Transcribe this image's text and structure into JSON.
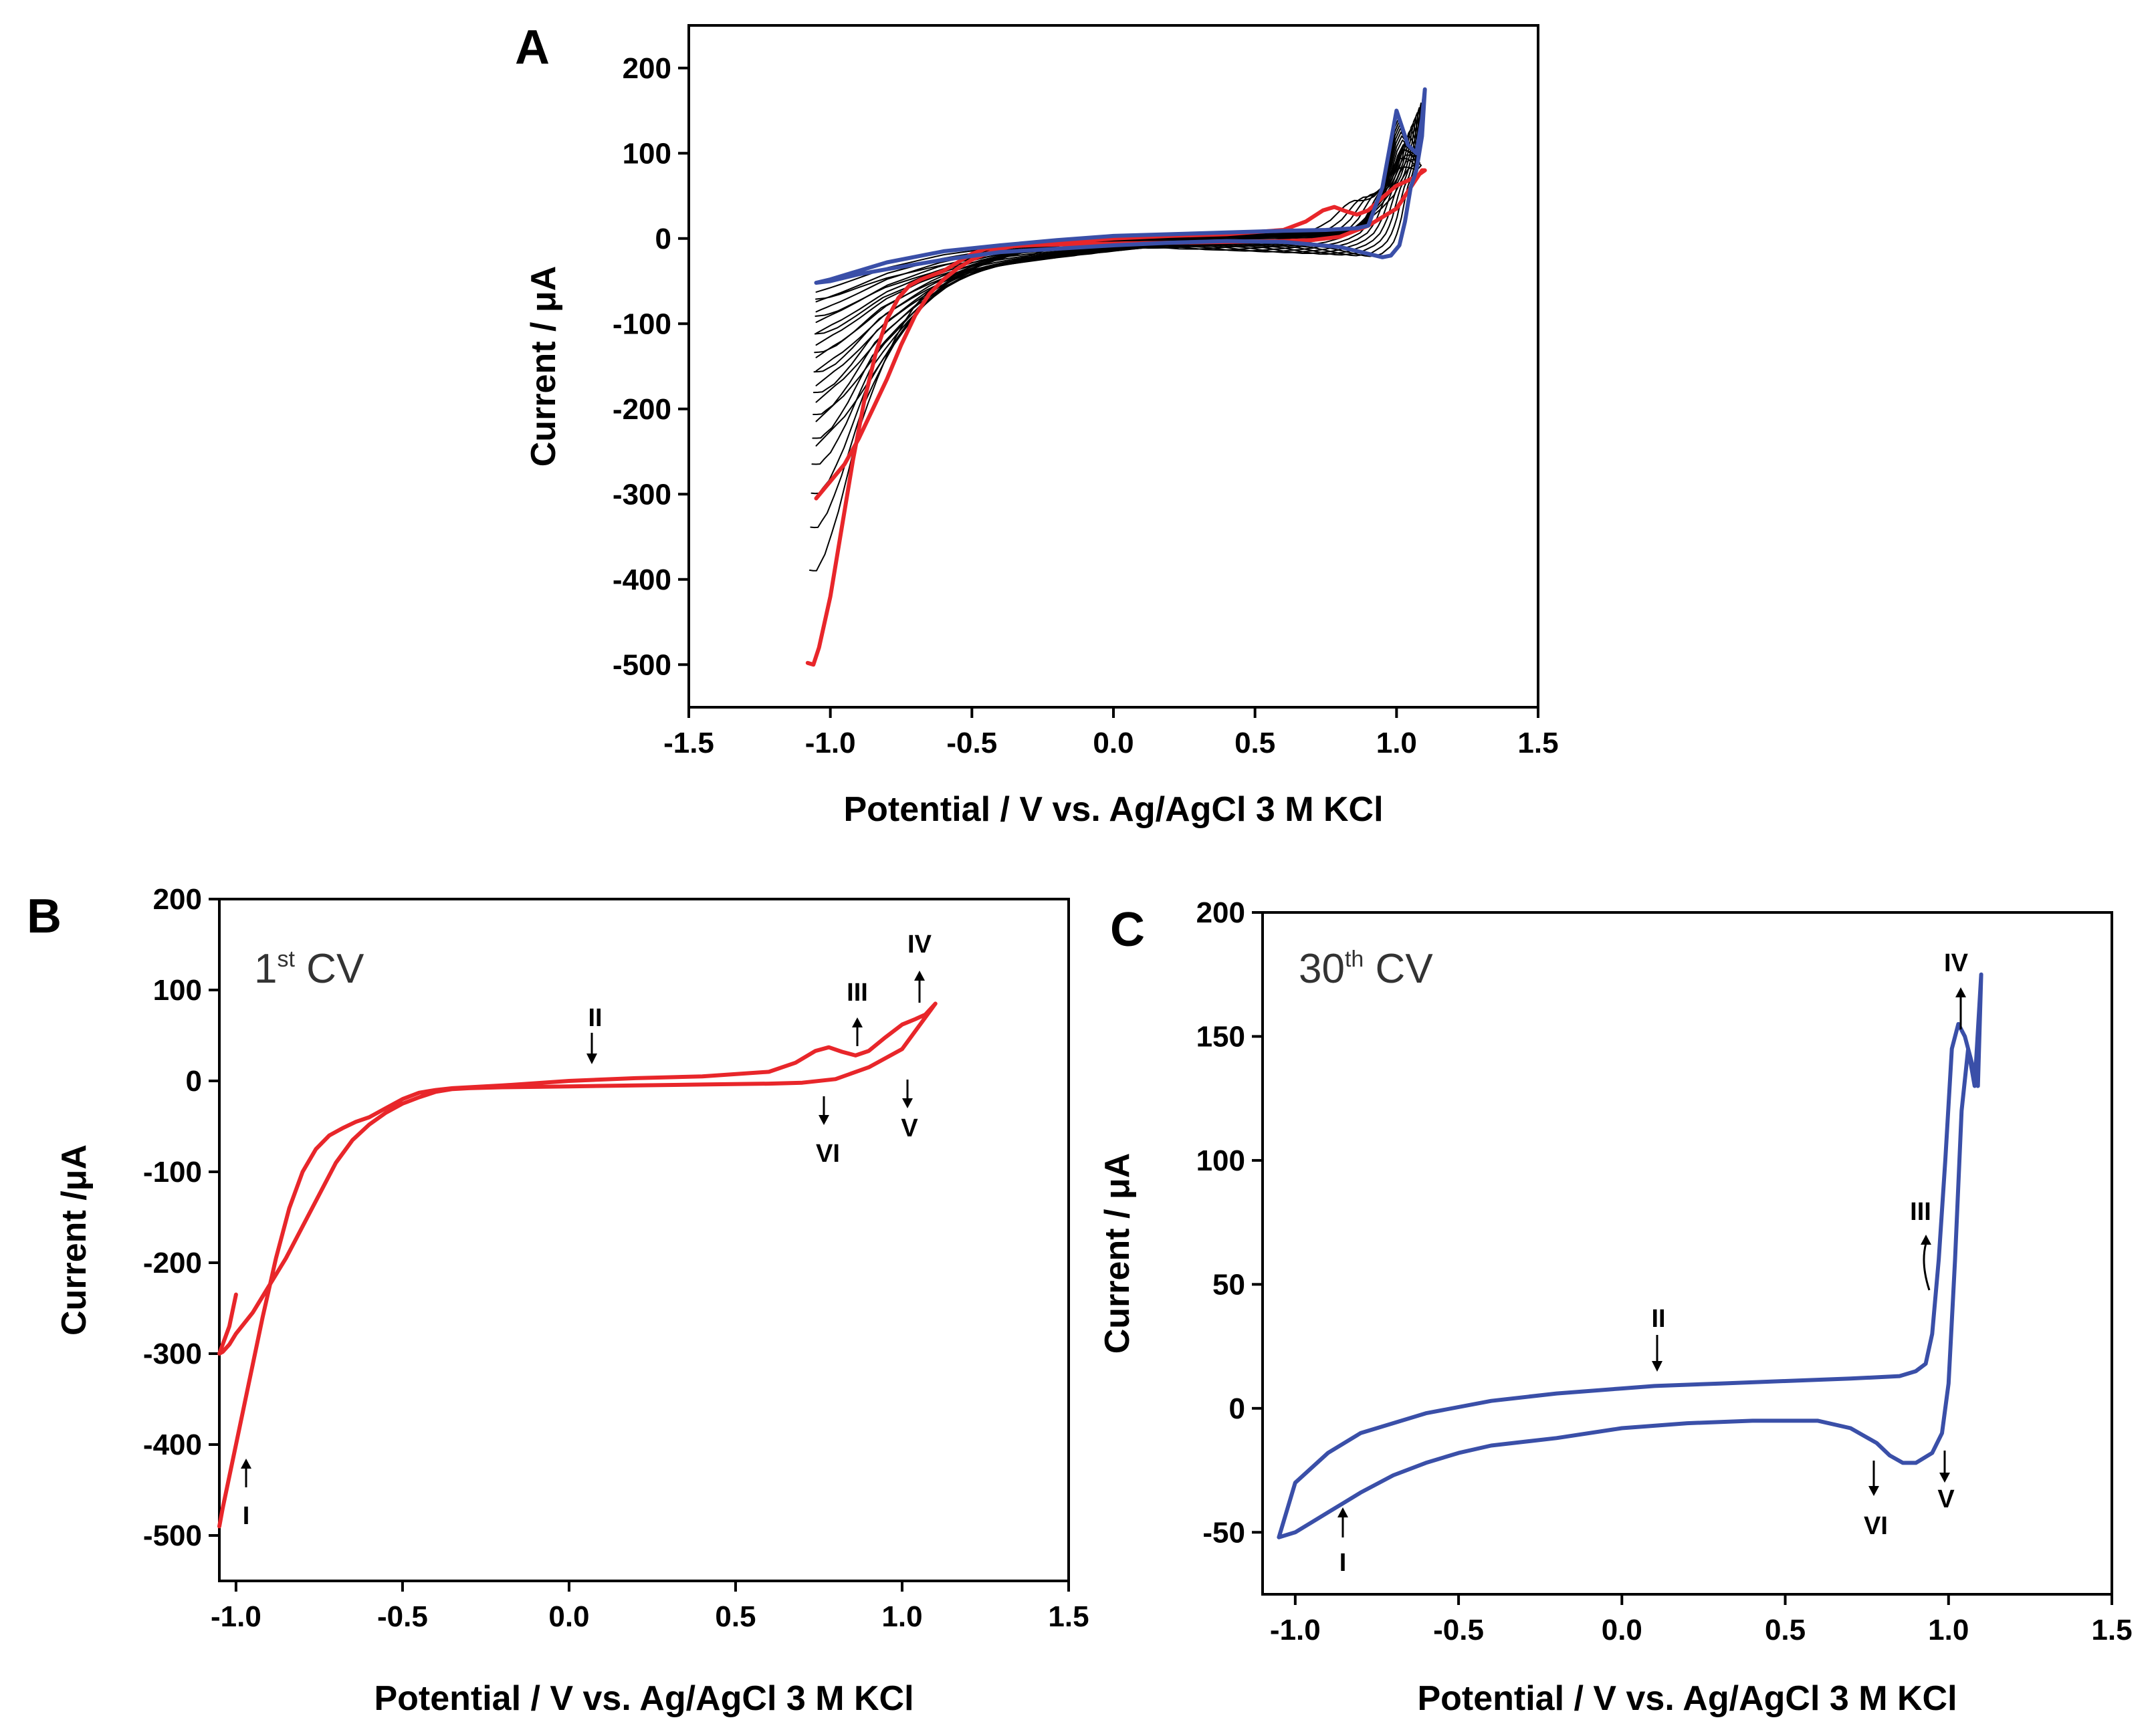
{
  "chart_data": [
    {
      "panel": "A",
      "type": "line",
      "xlabel": "Potential / V vs. Ag/AgCl 3 M KCl",
      "ylabel": "Current / μA",
      "xlim": [
        -1.5,
        1.5
      ],
      "ylim": [
        -550,
        250
      ],
      "xticks": [
        "-1.5",
        "-1.0",
        "-0.5",
        "0.0",
        "0.5",
        "1.0",
        "1.5"
      ],
      "yticks": [
        "-500",
        "-400",
        "-300",
        "-200",
        "-100",
        "0",
        "100",
        "200"
      ],
      "grid": false,
      "colors": {
        "first_cycle": "#e8262a",
        "intermediate_cycles": "#000000",
        "last_cycle": "#3a4fa8"
      },
      "series": [
        {
          "color": "#e8262a",
          "x": [
            -1.08,
            -1.06,
            -1.04,
            -1.0,
            -0.96,
            -0.92,
            -0.88,
            -0.84,
            -0.8,
            -0.76,
            -0.72,
            -0.68,
            -0.64,
            -0.6,
            -0.55,
            -0.5,
            -0.45,
            -0.4,
            -0.35,
            -0.3,
            -0.2,
            0.0,
            0.2,
            0.4,
            0.6,
            0.68,
            0.74,
            0.78,
            0.82,
            0.86,
            0.9,
            0.95,
            1.0,
            1.04,
            1.07,
            1.1,
            1.09,
            1.05,
            1.0,
            0.9,
            0.8,
            0.7,
            0.6,
            0.4,
            0.2,
            0.0,
            -0.2,
            -0.3,
            -0.35,
            -0.4,
            -0.45,
            -0.5,
            -0.55,
            -0.6,
            -0.65,
            -0.7,
            -0.75,
            -0.8,
            -0.85,
            -0.9,
            -0.95,
            -1.0,
            -1.05
          ],
          "y": [
            -498,
            -500,
            -480,
            -420,
            -340,
            -260,
            -190,
            -135,
            -95,
            -70,
            -55,
            -48,
            -43,
            -38,
            -28,
            -18,
            -12,
            -10,
            -8,
            -7,
            -5,
            0,
            3,
            5,
            10,
            20,
            33,
            37,
            32,
            28,
            33,
            48,
            62,
            68,
            73,
            80,
            80,
            60,
            35,
            15,
            2,
            -2,
            -3,
            -4,
            -5,
            -6,
            -7,
            -8,
            -9,
            -12,
            -18,
            -25,
            -35,
            -48,
            -65,
            -90,
            -125,
            -165,
            -200,
            -235,
            -265,
            -285,
            -305
          ]
        },
        {
          "color": "#3a4fa8",
          "x": [
            -1.05,
            -1.0,
            -0.9,
            -0.8,
            -0.6,
            -0.4,
            -0.2,
            0.0,
            0.2,
            0.4,
            0.6,
            0.8,
            0.9,
            0.95,
            0.98,
            1.01,
            1.03,
            1.05,
            1.07,
            1.09,
            1.1,
            1.09,
            1.07,
            1.04,
            1.0,
            0.95,
            0.9,
            0.86,
            0.8,
            0.75,
            0.6,
            0.4,
            0.2,
            0.0,
            -0.2,
            -0.4,
            -0.6,
            -0.8,
            -0.9,
            -1.0,
            -1.05
          ],
          "y": [
            -52,
            -50,
            -42,
            -36,
            -25,
            -16,
            -12,
            -8,
            -5,
            -3,
            -4,
            -10,
            -18,
            -22,
            -20,
            -8,
            20,
            60,
            80,
            120,
            175,
            140,
            100,
            110,
            150,
            60,
            15,
            12,
            11,
            10,
            9,
            7,
            5,
            3,
            -2,
            -8,
            -15,
            -28,
            -38,
            -48,
            -52
          ]
        }
      ],
      "intermediate_cycles_note": ""
    },
    {
      "panel": "B",
      "type": "line",
      "xlabel": "Potential / V vs. Ag/AgCl 3 M KCl",
      "ylabel": "Current /μA",
      "xlim": [
        -1.05,
        1.5
      ],
      "ylim": [
        -550,
        200
      ],
      "xticks": [
        "-1.0",
        "-0.5",
        "0.0",
        "0.5",
        "1.0",
        "1.5"
      ],
      "yticks": [
        "-500",
        "-400",
        "-300",
        "-200",
        "-100",
        "0",
        "100",
        "200"
      ],
      "grid": false,
      "cv_label": {
        "prefix": "1",
        "sup": "st",
        "suffix": " CV"
      },
      "annotations": [
        "I",
        "II",
        "III",
        "IV",
        "V",
        "VI"
      ],
      "series": [
        {
          "color": "#e8262a",
          "x": [
            -1.05,
            -1.04,
            -1.0,
            -0.96,
            -0.92,
            -0.88,
            -0.84,
            -0.8,
            -0.76,
            -0.72,
            -0.68,
            -0.64,
            -0.6,
            -0.55,
            -0.5,
            -0.45,
            -0.4,
            -0.35,
            -0.3,
            -0.2,
            0.0,
            0.2,
            0.4,
            0.6,
            0.68,
            0.74,
            0.78,
            0.82,
            0.86,
            0.9,
            0.95,
            1.0,
            1.04,
            1.07,
            1.1,
            1.09,
            1.05,
            1.0,
            0.9,
            0.8,
            0.7,
            0.6,
            0.4,
            0.2,
            0.0,
            -0.2,
            -0.3,
            -0.35,
            -0.4,
            -0.45,
            -0.5,
            -0.55,
            -0.6,
            -0.65,
            -0.7,
            -0.75,
            -0.8,
            -0.85,
            -0.9,
            -0.95,
            -1.0,
            -1.02,
            -1.04,
            -1.05,
            -1.02,
            -1.0
          ],
          "y": [
            -490,
            -470,
            -400,
            -330,
            -260,
            -195,
            -140,
            -100,
            -75,
            -60,
            -52,
            -45,
            -40,
            -30,
            -20,
            -13,
            -10,
            -8,
            -7,
            -5,
            0,
            3,
            5,
            10,
            20,
            33,
            37,
            32,
            28,
            33,
            48,
            62,
            68,
            73,
            85,
            80,
            60,
            35,
            15,
            2,
            -2,
            -3,
            -4,
            -5,
            -6,
            -7,
            -8,
            -9,
            -12,
            -18,
            -25,
            -35,
            -48,
            -65,
            -90,
            -125,
            -160,
            -195,
            -225,
            -255,
            -278,
            -290,
            -298,
            -300,
            -270,
            -235
          ]
        }
      ]
    },
    {
      "panel": "C",
      "type": "line",
      "xlabel": "Potential / V vs. Ag/AgCl 3 M KCl",
      "ylabel": "Current / μA",
      "xlim": [
        -1.1,
        1.5
      ],
      "ylim": [
        -75,
        200
      ],
      "xticks": [
        "-1.0",
        "-0.5",
        "0.0",
        "0.5",
        "1.0",
        "1.5"
      ],
      "yticks": [
        "-50",
        "0",
        "50",
        "100",
        "150",
        "200"
      ],
      "grid": false,
      "cv_label": {
        "prefix": "30",
        "sup": "th",
        "suffix": " CV"
      },
      "annotations": [
        "I",
        "II",
        "III",
        "IV",
        "V",
        "VI"
      ],
      "series": [
        {
          "color": "#3a4fa8",
          "x": [
            -1.05,
            -1.0,
            -0.95,
            -0.9,
            -0.85,
            -0.8,
            -0.7,
            -0.6,
            -0.5,
            -0.4,
            -0.2,
            0.0,
            0.2,
            0.4,
            0.6,
            0.7,
            0.78,
            0.82,
            0.86,
            0.9,
            0.95,
            0.98,
            1.0,
            1.02,
            1.04,
            1.06,
            1.08,
            1.1,
            1.09,
            1.07,
            1.05,
            1.03,
            1.01,
            0.99,
            0.97,
            0.95,
            0.93,
            0.9,
            0.85,
            0.7,
            0.5,
            0.3,
            0.1,
            0.0,
            -0.2,
            -0.4,
            -0.6,
            -0.8,
            -0.9,
            -1.0,
            -1.05
          ],
          "y": [
            -52,
            -50,
            -46,
            -42,
            -38,
            -34,
            -27,
            -22,
            -18,
            -15,
            -12,
            -8,
            -6,
            -5,
            -5,
            -8,
            -14,
            -19,
            -22,
            -22,
            -18,
            -10,
            10,
            60,
            120,
            145,
            130,
            175,
            130,
            140,
            150,
            155,
            145,
            100,
            60,
            30,
            18,
            15,
            13,
            12,
            11,
            10,
            9,
            8,
            6,
            3,
            -2,
            -10,
            -18,
            -30,
            -52
          ]
        }
      ]
    }
  ]
}
